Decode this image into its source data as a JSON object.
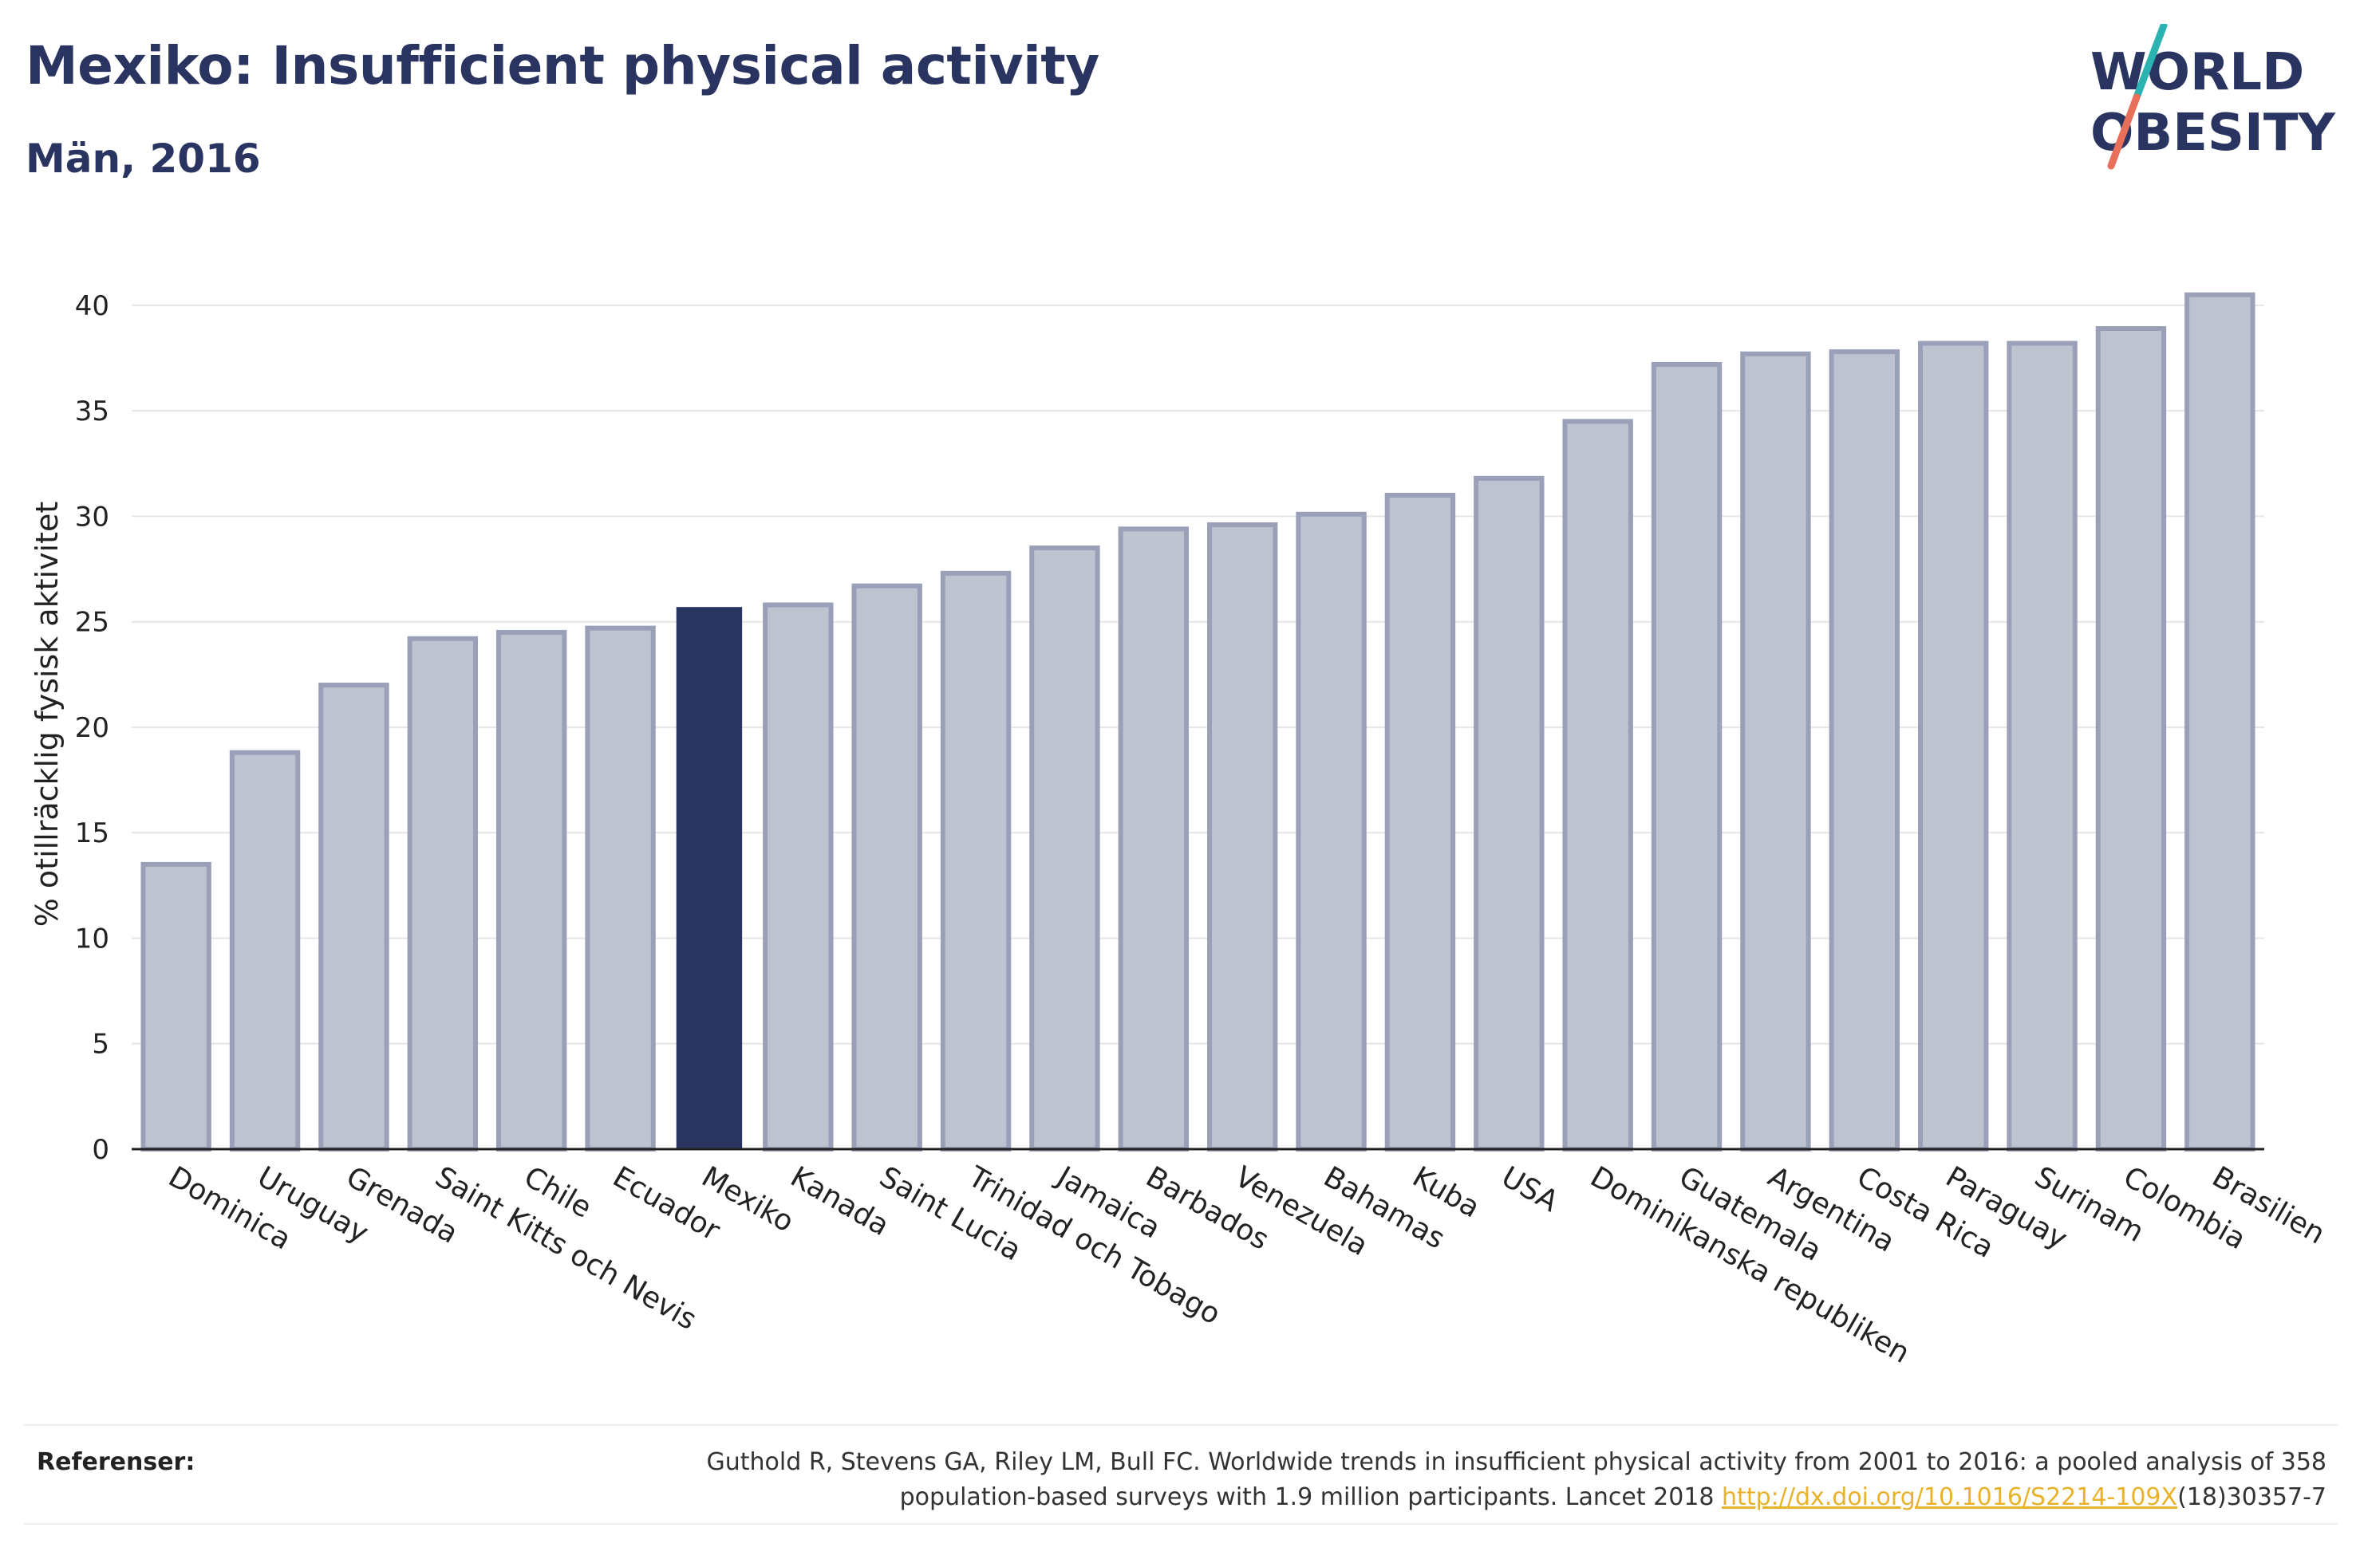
{
  "header": {
    "title": "Mexiko: Insufficient physical activity",
    "subtitle": "Män, 2016"
  },
  "logo": {
    "line1": "WORLD",
    "line2": "OBESITY",
    "text_color": "#2a3460",
    "slash_top_color": "#2ab3b0",
    "slash_bottom_color": "#e8705a"
  },
  "colors": {
    "bar_fill": "#bfc2cf",
    "bar_stroke": "#9aa0b8",
    "highlight_fill": "#2a3460",
    "grid": "#e6e6e6"
  },
  "chart_data": {
    "type": "bar",
    "ylabel": "% otillräcklig fysisk aktivitet",
    "xlabel": "",
    "ylim": [
      0,
      42
    ],
    "yticks": [
      0,
      5,
      10,
      15,
      20,
      25,
      30,
      35,
      40
    ],
    "grid": true,
    "highlight": "Mexiko",
    "categories": [
      "Dominica",
      "Uruguay",
      "Grenada",
      "Saint Kitts och Nevis",
      "Chile",
      "Ecuador",
      "Mexiko",
      "Kanada",
      "Saint Lucia",
      "Trinidad och Tobago",
      "Jamaica",
      "Barbados",
      "Venezuela",
      "Bahamas",
      "Kuba",
      "USA",
      "Dominikanska republiken",
      "Guatemala",
      "Argentina",
      "Costa Rica",
      "Paraguay",
      "Surinam",
      "Colombia",
      "Brasilien"
    ],
    "values": [
      13.5,
      18.8,
      22.0,
      24.2,
      24.5,
      24.7,
      25.7,
      25.8,
      26.7,
      27.3,
      28.5,
      29.4,
      29.6,
      30.1,
      31.0,
      31.8,
      34.5,
      37.2,
      37.7,
      37.8,
      38.2,
      38.2,
      38.9,
      40.5
    ]
  },
  "footer": {
    "references_label": "Referenser:",
    "reference_line1": "Guthold R, Stevens GA, Riley LM, Bull FC. Worldwide trends in insufficient physical activity from 2001 to 2016: a pooled analysis of 358",
    "reference_line2_prefix": "population-based surveys with 1.9 million participants. Lancet 2018 ",
    "reference_link": "http://dx.doi.org/10.1016/S2214-109X",
    "reference_line2_suffix": "(18)30357-7"
  }
}
